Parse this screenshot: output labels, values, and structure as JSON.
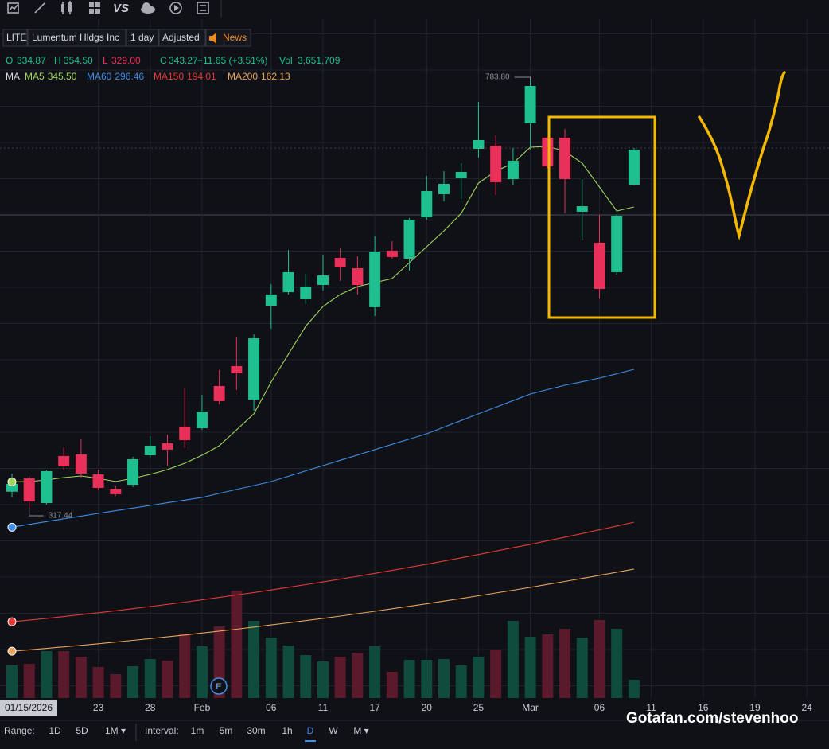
{
  "ui": {
    "toolbar": {
      "vs": "VS"
    },
    "header": {
      "symbol": "LITE",
      "name": "Lumentum Hldgs Inc",
      "interval": "1 day",
      "adjustment": "Adjusted",
      "news": "News"
    },
    "quote": [
      {
        "label": "O",
        "value": "334.87"
      },
      {
        "label": "H",
        "value": "354.50"
      },
      {
        "label": "L",
        "value": "329.00"
      },
      {
        "label": "C",
        "value": "343.27"
      },
      {
        "value": "+11.65 (+3.51%)"
      },
      {
        "label": "Vol",
        "value": "3,651,709"
      }
    ],
    "ma_label": "MA",
    "earnings_marker": "E",
    "range_label": "Range:",
    "ranges": [
      "1D",
      "5D",
      "1M ▾"
    ],
    "interval_label": "Interval:",
    "intervals": [
      "1m",
      "5m",
      "30m",
      "1h",
      "D",
      "W",
      "M ▾"
    ],
    "watermark": "Gotafan.com/stevenhoo"
  },
  "chart_data": {
    "type": "candlestick",
    "categories": [
      "01/15/2026",
      null,
      null,
      null,
      null,
      "23",
      null,
      null,
      "28",
      null,
      null,
      "Feb",
      null,
      null,
      null,
      "06",
      null,
      null,
      "11",
      null,
      null,
      "17",
      null,
      null,
      "20",
      null,
      null,
      "25",
      null,
      null,
      "Mar",
      null,
      null,
      null,
      "06",
      null,
      null
    ],
    "future_categories": [
      "11",
      null,
      null,
      "16",
      null,
      null,
      "19",
      null,
      null,
      "24"
    ],
    "open": [
      334.87,
      349.3,
      322.6,
      373.5,
      375.2,
      353.6,
      338.1,
      342.4,
      374.3,
      387.3,
      405.4,
      403.6,
      449.3,
      470.9,
      434.7,
      536.4,
      551.0,
      543.3,
      558.8,
      588.1,
      576.9,
      534.7,
      595.9,
      587.2,
      632.1,
      657.1,
      674.3,
      706.2,
      709.7,
      673.4,
      733.8,
      718.3,
      718.3,
      638.1,
      604.5,
      572.6,
      667.4
    ],
    "high": [
      354.5,
      351.9,
      358.0,
      383.0,
      391.6,
      358.8,
      341.6,
      372.6,
      395.0,
      396.7,
      446.7,
      439.8,
      466.6,
      501.9,
      505.4,
      559.7,
      596.7,
      570.9,
      591.6,
      598.5,
      589.8,
      611.4,
      606.2,
      631.2,
      676.9,
      682.1,
      690.7,
      757.1,
      720.9,
      707.1,
      783.8,
      719.1,
      727.8,
      673.4,
      634.7,
      634.7,
      707.1
    ],
    "low": [
      329.0,
      317.44,
      320.9,
      358.8,
      350.2,
      336.4,
      330.4,
      339.9,
      371.7,
      363.1,
      382.1,
      401.9,
      429.5,
      445.0,
      422.6,
      511.4,
      548.5,
      538.1,
      552.8,
      563.1,
      548.5,
      525.2,
      587.2,
      574.3,
      629.5,
      649.3,
      651.9,
      696.7,
      656.2,
      667.4,
      705.3,
      685.5,
      636.4,
      607.1,
      544.1,
      570.0,
      666.6
    ],
    "close": [
      343.27,
      324.3,
      357.1,
      362.3,
      354.5,
      339.0,
      332.1,
      370.0,
      384.7,
      380.4,
      390.7,
      421.7,
      433.0,
      463.1,
      501.0,
      548.5,
      572.6,
      557.1,
      569.1,
      577.8,
      558.8,
      595.0,
      589.0,
      629.5,
      660.5,
      668.3,
      681.2,
      715.7,
      670.0,
      693.3,
      774.3,
      687.2,
      673.4,
      644.1,
      554.5,
      633.8,
      705.3
    ],
    "volume": [
      3651709,
      3830000,
      5255000,
      5255000,
      4631000,
      3474000,
      2672000,
      3563000,
      4364000,
      4186000,
      7214000,
      5789000,
      8016000,
      12024000,
      8639000,
      6769000,
      5878000,
      4810000,
      4097000,
      4631000,
      5077000,
      5789000,
      2939000,
      4275000,
      4275000,
      4364000,
      3652000,
      4631000,
      5433000,
      8639000,
      6858000,
      7125000,
      7749000,
      6769000,
      8728000,
      7749000,
      2048000
    ],
    "up_color": "#1fbf8f",
    "down_color": "#e8305a",
    "volume_up_color": "#0f4c3c",
    "volume_down_color": "#5a1a2b",
    "ylim": [
      111.4,
      867.4
    ],
    "volume_lim": [
      0,
      15765000
    ],
    "moving_averages": [
      {
        "name": "MA5",
        "color": "#a3d55d",
        "legend_value": {
          "value": 345.5,
          "label": "345.50"
        },
        "values": [
          345.5,
          345.9,
          347.6,
          350.2,
          351.9,
          349.3,
          345.9,
          349.3,
          353.6,
          358.8,
          365.7,
          374.3,
          384.7,
          401.9,
          419.2,
          453.6,
          483.8,
          514.0,
          535.5,
          548.5,
          557.1,
          561.4,
          565.7,
          582.9,
          600.2,
          617.4,
          636.4,
          669.1,
          682.1,
          690.7,
          707.9,
          708.8,
          703.6,
          690.7,
          664.8,
          639.0,
          643.3
        ]
      },
      {
        "name": "MA60",
        "color": "#3f8de6",
        "legend_value": {
          "value": 296.46,
          "label": "296.46"
        },
        "values": [
          296.46,
          299.5,
          302.5,
          305.5,
          308.5,
          311.4,
          314.3,
          317.2,
          320.0,
          322.9,
          325.8,
          328.7,
          333.0,
          337.3,
          341.6,
          345.9,
          351.6,
          357.4,
          363.1,
          368.9,
          374.6,
          380.4,
          386.1,
          391.9,
          397.6,
          404.8,
          412.0,
          419.2,
          426.4,
          433.5,
          440.7,
          445.5,
          450.2,
          454.0,
          457.9,
          462.6,
          467.4
        ]
      },
      {
        "name": "MA150",
        "color": "#e53935",
        "legend_value": {
          "value": 194.01,
          "label": "194.01"
        },
        "values": [
          194.01,
          195.8,
          197.7,
          199.7,
          201.7,
          203.8,
          206.0,
          208.2,
          210.5,
          212.9,
          215.3,
          217.8,
          220.4,
          223.0,
          225.7,
          228.5,
          231.3,
          234.2,
          237.2,
          240.2,
          243.3,
          246.5,
          249.7,
          253.0,
          256.3,
          259.8,
          263.3,
          266.8,
          270.5,
          274.2,
          277.9,
          281.8,
          285.6,
          289.6,
          293.6,
          297.7,
          301.9
        ]
      },
      {
        "name": "MA200",
        "color": "#e8a35a",
        "legend_value": {
          "value": 162.13,
          "label": "162.13"
        },
        "values": [
          162.13,
          163.6,
          165.2,
          166.8,
          168.5,
          170.2,
          172.0,
          173.9,
          175.8,
          177.7,
          179.7,
          181.8,
          183.9,
          186.0,
          188.3,
          190.6,
          192.9,
          195.3,
          197.7,
          200.2,
          202.8,
          205.4,
          208.1,
          210.8,
          213.5,
          216.4,
          219.2,
          222.2,
          225.2,
          228.2,
          231.3,
          234.5,
          237.7,
          241.0,
          244.3,
          247.7,
          251.1
        ]
      }
    ],
    "annotations": [
      {
        "value": 783.8,
        "label": "783.80",
        "of": "high"
      },
      {
        "value": 317.44,
        "label": "317.44",
        "of": "low"
      }
    ]
  }
}
